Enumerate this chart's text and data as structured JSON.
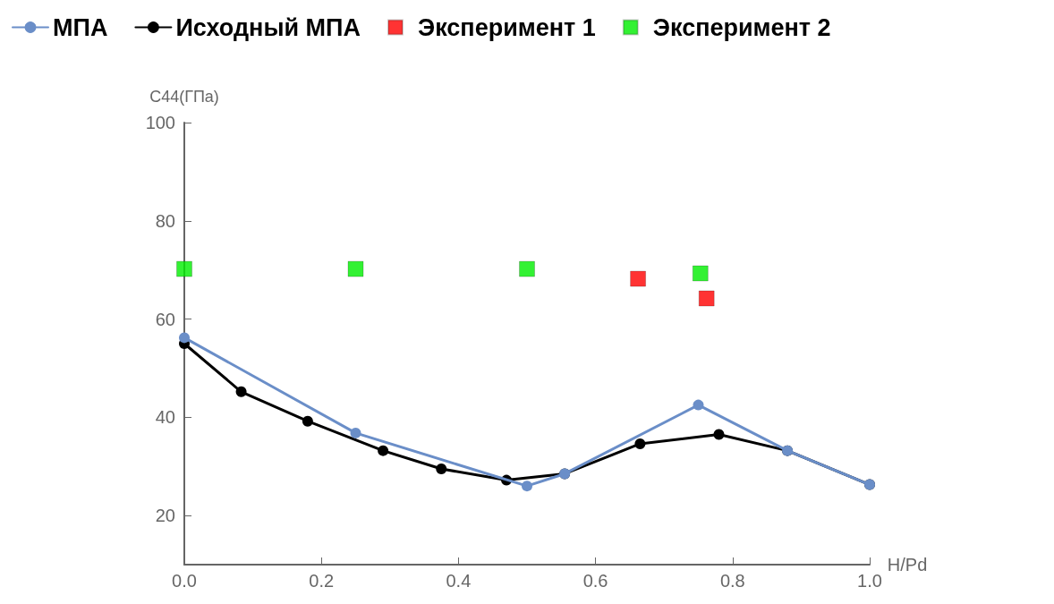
{
  "chart_data": {
    "type": "line",
    "xlabel": "H/Pd",
    "ylabel": "C44(ГПа)",
    "xlim": [
      0,
      1
    ],
    "xticks": [
      {
        "value": 0,
        "label": "0.0"
      },
      {
        "value": 0.2,
        "label": "0.2"
      },
      {
        "value": 0.4,
        "label": "0.4"
      },
      {
        "value": 0.6,
        "label": "0.6"
      },
      {
        "value": 0.8,
        "label": "0.8"
      },
      {
        "value": 1,
        "label": "1.0"
      }
    ],
    "ylim": [
      10,
      100
    ],
    "yticks": [
      20,
      40,
      60,
      80,
      100
    ],
    "grid": false,
    "legend": "top",
    "marker": "circle",
    "line_style": "solid",
    "series": [
      {
        "name": "МПА",
        "color": "#6a8ec8",
        "x": [
          0,
          0.25,
          0.5,
          0.555,
          0.75,
          0.88,
          1.0
        ],
        "values": [
          56.2,
          36.8,
          26,
          28.5,
          42.5,
          33.2,
          26.3
        ]
      },
      {
        "name": "Исходный МПА",
        "color": "#000000",
        "x": [
          0,
          0.083,
          0.18,
          0.29,
          0.375,
          0.47,
          0.555,
          0.665,
          0.78,
          0.88,
          1.0
        ],
        "values": [
          55,
          45.2,
          39.2,
          33.2,
          29.5,
          27.2,
          28.5,
          34.6,
          36.5,
          33.2,
          26.3
        ]
      },
      {
        "name": "Эксперимент 1",
        "type": "scatter",
        "marker": "square",
        "color": "#ff0000",
        "x": [
          0.662,
          0.762
        ],
        "values": [
          68.2,
          64.2
        ]
      },
      {
        "name": "Эксперимент 2",
        "type": "scatter",
        "marker": "square",
        "color": "#00ee00",
        "x": [
          0,
          0.25,
          0.5,
          0.753
        ],
        "values": [
          70.2,
          70.2,
          70.2,
          69.3
        ]
      }
    ]
  }
}
